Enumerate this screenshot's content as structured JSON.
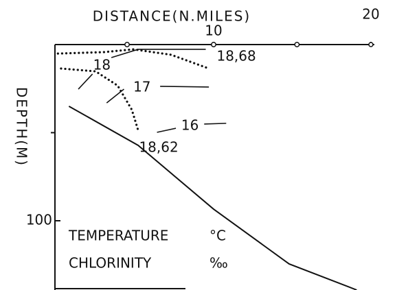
{
  "chart_data": {
    "type": "contour",
    "title": "DISTANCE(N.MILES)",
    "y_label": "DEPTH(M)",
    "xlim": [
      0,
      20
    ],
    "ylim": [
      0,
      140
    ],
    "xticks": [
      10,
      20
    ],
    "yticks": [
      {
        "value": 50,
        "label": null
      },
      100
    ],
    "y_reversed": true,
    "stations": [
      4.5,
      10,
      15.3
    ],
    "bottom_profile": {
      "x": [
        0.8,
        5.2,
        10,
        14.8,
        19.1
      ],
      "y": [
        35,
        57.2,
        93.4,
        124.5,
        139.3
      ]
    },
    "isotherms": [
      {
        "label": "18",
        "x": [
          1.4,
          2.3,
          null,
          3.5,
          5.2,
          9.5
        ],
        "y": [
          25.3,
          16.7,
          null,
          7.4,
          2.7,
          2.7
        ]
      },
      {
        "label": "17",
        "x": [
          3.2,
          4.3,
          null,
          6.6,
          9.7
        ],
        "y": [
          33.1,
          25.3,
          null,
          23.7,
          24.1
        ]
      },
      {
        "label": "16",
        "x": [
          6.4,
          7.6,
          null,
          9.4,
          10.8
        ],
        "y": [
          49.8,
          47.5,
          null,
          45.1,
          44.7
        ]
      }
    ],
    "isohalines": [
      {
        "label": "18,68",
        "x": [
          0.1,
          3.0,
          4.9,
          7.3,
          9.7
        ],
        "y": [
          5.1,
          4.3,
          2.7,
          5.8,
          13.6
        ]
      },
      {
        "label": "18,62",
        "x": [
          0.3,
          2.5,
          3.9,
          4.8,
          5.2
        ],
        "y": [
          13.6,
          15.2,
          23.3,
          37.0,
          48.6
        ]
      }
    ],
    "legend": [
      {
        "name": "TEMPERATURE",
        "unit": "°C"
      },
      {
        "name": "CHLORINITY",
        "unit": "‰"
      }
    ]
  }
}
